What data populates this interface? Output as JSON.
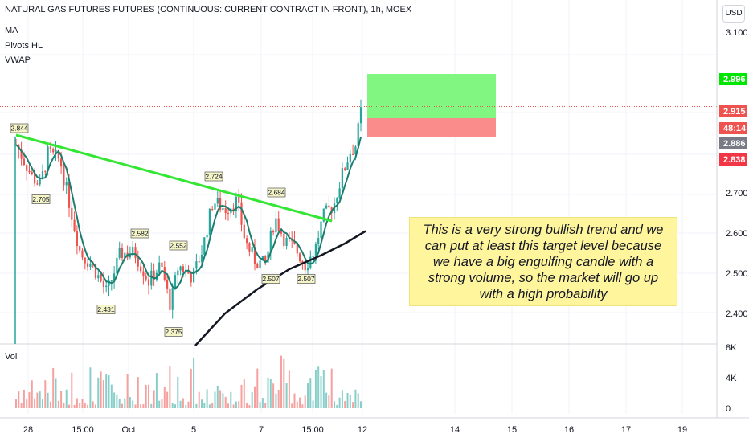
{
  "header": {
    "symbol": "NATURAL GAS FUTURES FUTURES (CONTINUOUS: CURRENT CONTRACT IN FRONT), 1h, MOEX",
    "indicators": [
      "MA",
      "Pivots HL",
      "VWAP"
    ]
  },
  "currency_button": "USD",
  "volume_label": "Vol",
  "annotation": "This is a very strong bullish trend and we can put at least this target level because we have a big engulfing candle with a strong volume, so the market will go up with a high probability",
  "colors": {
    "bull": "#26a69a",
    "bear": "#ef5350",
    "trendline": "#33e633",
    "ma": "#1b7d6e",
    "vwap": "#131722",
    "target_zone": "#81f781",
    "stop_zone": "#fb8c8c",
    "pivot_label_bg": "#f5f5c8"
  },
  "chart_data": {
    "type": "candlestick",
    "x_ticks": [
      "28",
      "15:00",
      "Oct",
      "5",
      "7",
      "15:00",
      "12",
      "14",
      "15",
      "16",
      "17",
      "19"
    ],
    "price_axis": {
      "ticks": [
        "3.100",
        "2.700",
        "2.600",
        "2.500",
        "2.400"
      ],
      "range": [
        2.32,
        3.18
      ]
    },
    "price_labels": [
      {
        "value": "2.996",
        "color": "#00e600"
      },
      {
        "value": "2.915",
        "color": "#ef5350"
      },
      {
        "value": "48:14",
        "color": "#ef5350"
      },
      {
        "value": "2.886",
        "color": "#787b86"
      },
      {
        "value": "2.838",
        "color": "#f23645"
      }
    ],
    "volume_axis": {
      "ticks": [
        "8K",
        "4K",
        "0"
      ],
      "range": [
        0,
        8000
      ]
    },
    "pivot_labels": [
      {
        "text": "2.844",
        "type": "high"
      },
      {
        "text": "2.705",
        "type": "low"
      },
      {
        "text": "2.431",
        "type": "low"
      },
      {
        "text": "2.582",
        "type": "high"
      },
      {
        "text": "2.375",
        "type": "low"
      },
      {
        "text": "2.552",
        "type": "high"
      },
      {
        "text": "2.724",
        "type": "high"
      },
      {
        "text": "2.684",
        "type": "high"
      },
      {
        "text": "2.507",
        "type": "low"
      },
      {
        "text": "2.507",
        "type": "low"
      }
    ],
    "trendline": {
      "from": 2.844,
      "to": 2.63
    },
    "target_zone": {
      "top": 2.996,
      "bottom": 2.886
    },
    "stop_zone": {
      "top": 2.886,
      "bottom": 2.838
    },
    "last_price": 2.915
  }
}
